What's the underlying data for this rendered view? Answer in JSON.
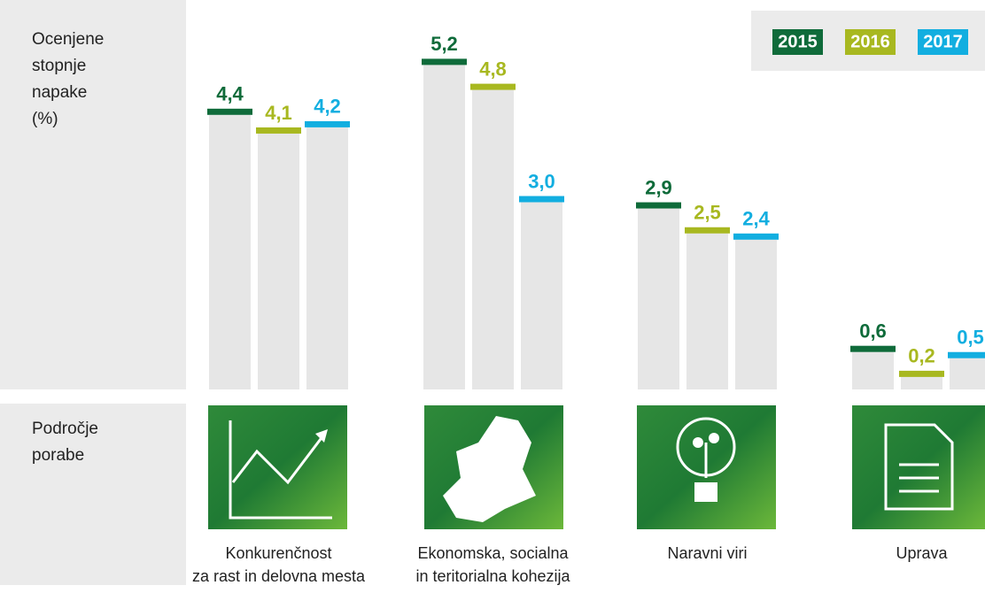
{
  "chart_data": {
    "type": "bar",
    "y_label": "Ocenjene\nstopnje\nnapake\n(%)",
    "x_label": "Področje\nporabe",
    "categories": [
      "Konkurenčnost\nza rast in delovna mesta",
      "Ekonomska, socialna\nin teritorialna kohezija",
      "Naravni viri",
      "Uprava"
    ],
    "series": [
      {
        "name": "2015",
        "color": "#0f6b3a",
        "values": [
          4.4,
          5.2,
          2.9,
          0.6
        ],
        "value_labels": [
          "4,4",
          "5,2",
          "2,9",
          "0,6"
        ]
      },
      {
        "name": "2016",
        "color": "#a8b820",
        "values": [
          4.1,
          4.8,
          2.5,
          0.2
        ],
        "value_labels": [
          "4,1",
          "4,8",
          "2,5",
          "0,2"
        ]
      },
      {
        "name": "2017",
        "color": "#12aee0",
        "values": [
          4.2,
          3.0,
          2.4,
          0.5
        ],
        "value_labels": [
          "4,2",
          "3,0",
          "2,4",
          "0,5"
        ]
      }
    ],
    "ylim": [
      0,
      6
    ],
    "legend": "top-right"
  }
}
